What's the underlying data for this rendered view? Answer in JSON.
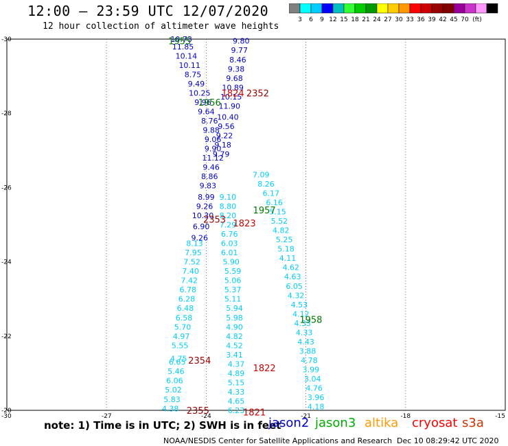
{
  "header": {
    "title": "12:00 – 23:59 UTC 12/07/2020",
    "subtitle": "12 hour collection of altimeter wave heights"
  },
  "colorbar": {
    "colors": [
      "#808080",
      "#00ffff",
      "#00ccff",
      "#0000ff",
      "#00bfbf",
      "#33ff33",
      "#00cc00",
      "#009900",
      "#ffff00",
      "#ffcc00",
      "#ff9900",
      "#ff0000",
      "#cc0000",
      "#990000",
      "#800000",
      "#990099",
      "#cc33cc",
      "#ff99ff",
      "#000000"
    ],
    "labels": [
      "3",
      "6",
      "9",
      "12",
      "15",
      "18",
      "21",
      "24",
      "27",
      "30",
      "33",
      "36",
      "39",
      "42",
      "45",
      "70"
    ],
    "unit": "(ft)"
  },
  "chart_data": {
    "type": "scatter",
    "title": "12:00 – 23:59 UTC 12/07/2020",
    "subtitle": "12 hour collection of altimeter wave heights",
    "xlim": [
      -30,
      -15
    ],
    "ylim": [
      -30,
      -20
    ],
    "x_ticks": [
      "-30",
      "-27",
      "-24",
      "-21",
      "-18",
      "-15"
    ],
    "y_ticks": [
      "-20",
      "-22",
      "-24",
      "-26",
      "-28",
      "-30"
    ],
    "grid": true,
    "series": [
      {
        "color": "#00ccff",
        "points": [
          {
            "lon": -25.08,
            "lat": -20.05,
            "swh": "4.38"
          },
          {
            "lon": -25.03,
            "lat": -20.3,
            "swh": "5.83"
          },
          {
            "lon": -24.99,
            "lat": -20.55,
            "swh": "5.02"
          },
          {
            "lon": -24.95,
            "lat": -20.8,
            "swh": "6.06"
          },
          {
            "lon": -24.91,
            "lat": -21.05,
            "swh": "5.46"
          },
          {
            "lon": -24.87,
            "lat": -21.3,
            "swh": "6.65"
          },
          {
            "lon": -24.83,
            "lat": -21.4,
            "swh": "4.75"
          },
          {
            "lon": -24.79,
            "lat": -21.75,
            "swh": "5.55"
          },
          {
            "lon": -24.75,
            "lat": -22.0,
            "swh": "4.97"
          },
          {
            "lon": -24.71,
            "lat": -22.25,
            "swh": "5.70"
          },
          {
            "lon": -24.67,
            "lat": -22.5,
            "swh": "6.58"
          },
          {
            "lon": -24.63,
            "lat": -22.75,
            "swh": "6.48"
          },
          {
            "lon": -24.59,
            "lat": -23.0,
            "swh": "6.28"
          },
          {
            "lon": -24.55,
            "lat": -23.25,
            "swh": "6.78"
          },
          {
            "lon": -24.51,
            "lat": -23.5,
            "swh": "7.42"
          },
          {
            "lon": -24.47,
            "lat": -23.75,
            "swh": "7.40"
          },
          {
            "lon": -24.43,
            "lat": -24.0,
            "swh": "7.52"
          },
          {
            "lon": -24.39,
            "lat": -24.25,
            "swh": "7.95"
          },
          {
            "lon": -24.35,
            "lat": -24.5,
            "swh": "8.13"
          }
        ]
      },
      {
        "color": "#00ccff",
        "points": [
          {
            "lon": -23.1,
            "lat": -20.0,
            "swh": "6.23"
          },
          {
            "lon": -23.1,
            "lat": -20.25,
            "swh": "4.65"
          },
          {
            "lon": -23.1,
            "lat": -20.5,
            "swh": "4.33"
          },
          {
            "lon": -23.1,
            "lat": -20.75,
            "swh": "5.15"
          },
          {
            "lon": -23.1,
            "lat": -21.0,
            "swh": "4.89"
          },
          {
            "lon": -23.1,
            "lat": -21.25,
            "swh": "4.37"
          },
          {
            "lon": -23.15,
            "lat": -21.5,
            "swh": "3.41"
          },
          {
            "lon": -23.15,
            "lat": -21.75,
            "swh": "4.52"
          },
          {
            "lon": -23.15,
            "lat": -22.0,
            "swh": "4.82"
          },
          {
            "lon": -23.15,
            "lat": -22.25,
            "swh": "4.90"
          },
          {
            "lon": -23.15,
            "lat": -22.5,
            "swh": "5.98"
          },
          {
            "lon": -23.15,
            "lat": -22.75,
            "swh": "5.94"
          },
          {
            "lon": -23.2,
            "lat": -23.0,
            "swh": "5.11"
          },
          {
            "lon": -23.2,
            "lat": -23.25,
            "swh": "5.37"
          },
          {
            "lon": -23.2,
            "lat": -23.5,
            "swh": "5.06"
          },
          {
            "lon": -23.2,
            "lat": -23.75,
            "swh": "5.59"
          },
          {
            "lon": -23.25,
            "lat": -24.0,
            "swh": "5.90"
          },
          {
            "lon": -23.3,
            "lat": -24.25,
            "swh": "6.01"
          },
          {
            "lon": -23.3,
            "lat": -24.5,
            "swh": "6.03"
          },
          {
            "lon": -23.3,
            "lat": -24.75,
            "swh": "6.76"
          },
          {
            "lon": -23.35,
            "lat": -25.0,
            "swh": "7.29"
          },
          {
            "lon": -23.35,
            "lat": -25.25,
            "swh": "8.20"
          },
          {
            "lon": -23.35,
            "lat": -25.5,
            "swh": "8.80"
          },
          {
            "lon": -23.35,
            "lat": -25.75,
            "swh": "9.10"
          }
        ]
      },
      {
        "color": "#00ccff",
        "points": [
          {
            "lon": -20.7,
            "lat": -20.1,
            "swh": "4.18"
          },
          {
            "lon": -20.7,
            "lat": -20.35,
            "swh": "3.96"
          },
          {
            "lon": -20.75,
            "lat": -20.6,
            "swh": "4.76"
          },
          {
            "lon": -20.8,
            "lat": -20.85,
            "swh": "3.04"
          },
          {
            "lon": -20.85,
            "lat": -21.1,
            "swh": "3.99"
          },
          {
            "lon": -20.9,
            "lat": -21.35,
            "swh": "4.78"
          },
          {
            "lon": -20.95,
            "lat": -21.6,
            "swh": "3.88"
          },
          {
            "lon": -21.0,
            "lat": -21.85,
            "swh": "4.43"
          },
          {
            "lon": -21.05,
            "lat": -22.1,
            "swh": "4.33"
          },
          {
            "lon": -21.1,
            "lat": -22.35,
            "swh": "4.33"
          },
          {
            "lon": -21.15,
            "lat": -22.6,
            "swh": "4.12"
          },
          {
            "lon": -21.2,
            "lat": -22.85,
            "swh": "4.53"
          },
          {
            "lon": -21.3,
            "lat": -23.1,
            "swh": "4.32"
          },
          {
            "lon": -21.35,
            "lat": -23.35,
            "swh": "6.05"
          },
          {
            "lon": -21.4,
            "lat": -23.6,
            "swh": "4.63"
          },
          {
            "lon": -21.45,
            "lat": -23.85,
            "swh": "4.62"
          },
          {
            "lon": -21.55,
            "lat": -24.1,
            "swh": "4.11"
          },
          {
            "lon": -21.6,
            "lat": -24.35,
            "swh": "5.18"
          },
          {
            "lon": -21.65,
            "lat": -24.6,
            "swh": "5.25"
          },
          {
            "lon": -21.75,
            "lat": -24.85,
            "swh": "4.82"
          },
          {
            "lon": -21.8,
            "lat": -25.1,
            "swh": "5.52"
          },
          {
            "lon": -21.85,
            "lat": -25.35,
            "swh": "5.15"
          },
          {
            "lon": -21.95,
            "lat": -25.6,
            "swh": "6.16"
          },
          {
            "lon": -22.05,
            "lat": -25.85,
            "swh": "6.17"
          },
          {
            "lon": -22.2,
            "lat": -26.1,
            "swh": "8.26"
          },
          {
            "lon": -22.35,
            "lat": -26.35,
            "swh": "7.09"
          }
        ]
      },
      {
        "color": "#0000cc",
        "points": [
          {
            "lon": -24.2,
            "lat": -24.65,
            "swh": "9.26"
          },
          {
            "lon": -24.15,
            "lat": -24.95,
            "swh": "6.90"
          },
          {
            "lon": -24.1,
            "lat": -25.25,
            "swh": "10.30"
          },
          {
            "lon": -24.05,
            "lat": -25.5,
            "swh": "9.26"
          },
          {
            "lon": -24.0,
            "lat": -25.75,
            "swh": "8.99"
          },
          {
            "lon": -23.95,
            "lat": -26.05,
            "swh": "9.83"
          },
          {
            "lon": -23.9,
            "lat": -26.3,
            "swh": "8.86"
          },
          {
            "lon": -23.85,
            "lat": -26.55,
            "swh": "9.46"
          },
          {
            "lon": -23.8,
            "lat": -26.8,
            "swh": "11.12"
          },
          {
            "lon": -23.8,
            "lat": -27.05,
            "swh": "9.90"
          },
          {
            "lon": -23.8,
            "lat": -27.3,
            "swh": "9.06"
          },
          {
            "lon": -23.85,
            "lat": -27.55,
            "swh": "9.88"
          },
          {
            "lon": -23.9,
            "lat": -27.8,
            "swh": "8.76"
          },
          {
            "lon": -24.0,
            "lat": -28.05,
            "swh": "9.64"
          },
          {
            "lon": -24.1,
            "lat": -28.3,
            "swh": "9.96"
          },
          {
            "lon": -24.2,
            "lat": -28.55,
            "swh": "10.25"
          },
          {
            "lon": -24.3,
            "lat": -28.8,
            "swh": "9.49"
          },
          {
            "lon": -24.4,
            "lat": -29.05,
            "swh": "8.75"
          },
          {
            "lon": -24.5,
            "lat": -29.3,
            "swh": "10.11"
          },
          {
            "lon": -24.6,
            "lat": -29.55,
            "swh": "10.14"
          },
          {
            "lon": -24.7,
            "lat": -29.8,
            "swh": "11.85"
          },
          {
            "lon": -24.75,
            "lat": -30.0,
            "swh": "10.73"
          }
        ]
      },
      {
        "color": "#0000cc",
        "points": [
          {
            "lon": -23.55,
            "lat": -26.9,
            "swh": "9.79"
          },
          {
            "lon": -23.5,
            "lat": -27.15,
            "swh": "9.18"
          },
          {
            "lon": -23.45,
            "lat": -27.4,
            "swh": "9.22"
          },
          {
            "lon": -23.4,
            "lat": -27.65,
            "swh": "9.56"
          },
          {
            "lon": -23.35,
            "lat": -27.9,
            "swh": "10.40"
          },
          {
            "lon": -23.3,
            "lat": -28.2,
            "swh": "11.90"
          },
          {
            "lon": -23.25,
            "lat": -28.45,
            "swh": "10.15"
          },
          {
            "lon": -23.2,
            "lat": -28.7,
            "swh": "10.89"
          },
          {
            "lon": -23.15,
            "lat": -28.95,
            "swh": "9.68"
          },
          {
            "lon": -23.1,
            "lat": -29.2,
            "swh": "9.38"
          },
          {
            "lon": -23.05,
            "lat": -29.45,
            "swh": "8.46"
          },
          {
            "lon": -23.0,
            "lat": -29.7,
            "swh": "9.77"
          },
          {
            "lon": -22.95,
            "lat": -29.95,
            "swh": "9.80"
          }
        ]
      }
    ],
    "annotations": [
      {
        "text": "2355",
        "lon": -24.25,
        "lat": -20.0,
        "color": "#990000"
      },
      {
        "text": "1821",
        "lon": -22.55,
        "lat": -19.95,
        "color": "#cc0000"
      },
      {
        "text": "2354",
        "lon": -24.2,
        "lat": -21.35,
        "color": "#990000"
      },
      {
        "text": "1822",
        "lon": -22.25,
        "lat": -21.15,
        "color": "#cc0000"
      },
      {
        "text": "1958",
        "lon": -20.85,
        "lat": -22.45,
        "color": "#007700"
      },
      {
        "text": "2353",
        "lon": -23.75,
        "lat": -25.15,
        "color": "#990000"
      },
      {
        "text": "1823",
        "lon": -22.85,
        "lat": -25.05,
        "color": "#cc0000"
      },
      {
        "text": "1957",
        "lon": -22.25,
        "lat": -25.4,
        "color": "#007700"
      },
      {
        "text": "1956",
        "lon": -23.9,
        "lat": -28.3,
        "color": "#007700"
      },
      {
        "text": "1824",
        "lon": -23.2,
        "lat": -28.55,
        "color": "#cc0000"
      },
      {
        "text": "2352",
        "lon": -22.45,
        "lat": -28.55,
        "color": "#990000"
      },
      {
        "text": "1955",
        "lon": -24.8,
        "lat": -29.95,
        "color": "#007700"
      }
    ]
  },
  "footer": {
    "note": "note: 1) Time is in UTC; 2) SWH is in feet",
    "satellites": [
      {
        "name": "jason2",
        "color": "#0000cc"
      },
      {
        "name": "jason3",
        "color": "#00aa00"
      },
      {
        "name": "altika",
        "color": "#ff9900"
      },
      {
        "name": "cryosat",
        "color": "#ff0000"
      },
      {
        "name": "s3a",
        "color": "#cc3300"
      }
    ],
    "credit": "NOAA/NESDIS Center for Satellite Applications and Research",
    "generated": "Dec 10 08:29:42 UTC 2020"
  }
}
